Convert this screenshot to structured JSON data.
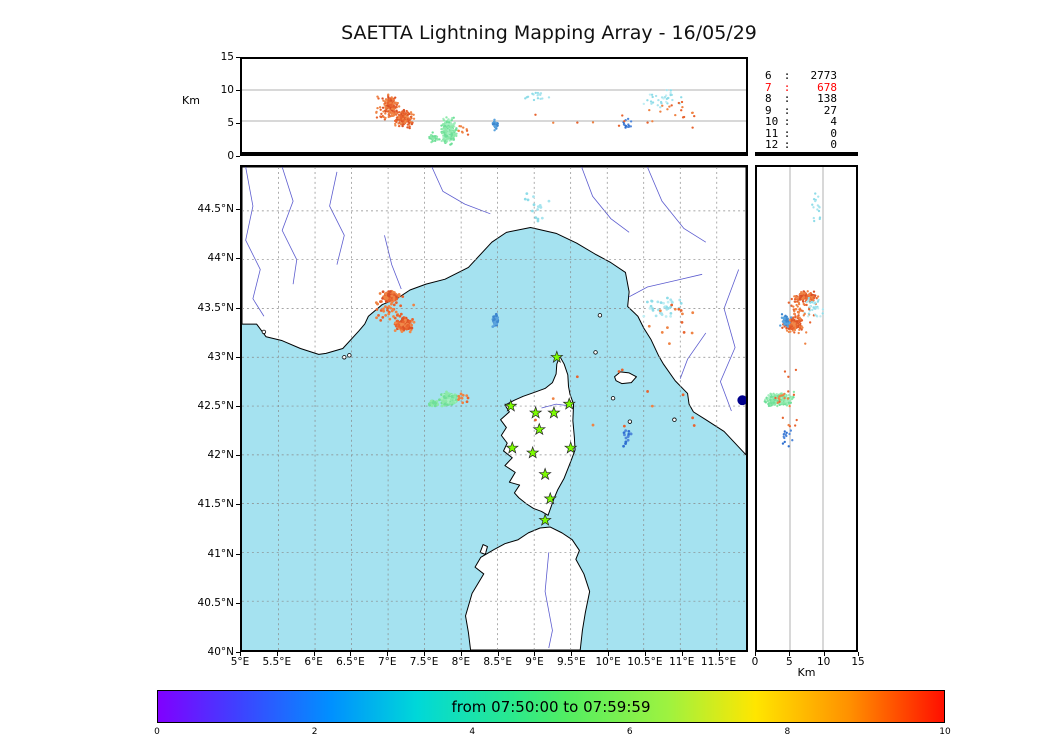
{
  "title": "SAETTA Lightning Mapping Array - 16/05/29",
  "axes": {
    "km_top_label": "Km",
    "km_right_label": "Km",
    "alt_ticks": [
      "0",
      "5",
      "10",
      "15"
    ],
    "lon_ticks": [
      "5°E",
      "5.5°E",
      "6°E",
      "6.5°E",
      "7°E",
      "7.5°E",
      "8°E",
      "8.5°E",
      "9°E",
      "9.5°E",
      "10°E",
      "10.5°E",
      "11°E",
      "11.5°E"
    ],
    "lat_ticks": [
      "40°N",
      "40.5°N",
      "41°N",
      "41.5°N",
      "42°N",
      "42.5°N",
      "43°N",
      "43.5°N",
      "44°N",
      "44.5°N"
    ]
  },
  "stats": {
    "rows": [
      {
        "level": "6",
        "count": "2773",
        "color": "#000000"
      },
      {
        "level": "7",
        "count": "678",
        "color": "#ff0000"
      },
      {
        "level": "8",
        "count": "138",
        "color": "#000000"
      },
      {
        "level": "9",
        "count": "27",
        "color": "#000000"
      },
      {
        "level": "10",
        "count": "4",
        "color": "#000000"
      },
      {
        "level": "11",
        "count": "0",
        "color": "#000000"
      },
      {
        "level": "12",
        "count": "0",
        "color": "#000000"
      }
    ]
  },
  "colorbar": {
    "label": "from 07:50:00 to 07:59:59",
    "ticks": [
      "0",
      "2",
      "4",
      "6",
      "8",
      "10"
    ],
    "gradient": [
      "#8000ff",
      "#4040ff",
      "#0090ff",
      "#00d8d8",
      "#2ae98e",
      "#52ee62",
      "#9ff23f",
      "#ffe600",
      "#ff9000",
      "#ff0f00"
    ]
  },
  "chart_data": {
    "type": "scatter",
    "title": "SAETTA Lightning Mapping Array - 16/05/29",
    "map": {
      "lon_range": [
        5.0,
        11.9
      ],
      "lat_range": [
        40.0,
        44.95
      ],
      "sea_color": "#a5e2f0",
      "land_color": "#ffffff",
      "river_color": "#5c5ccf",
      "grid": true
    },
    "alt_range": [
      0,
      15
    ],
    "alt_gridlines": [
      5,
      10
    ],
    "station_color": "#7cfc00",
    "clusters": [
      {
        "name": "orange-north",
        "colors": [
          "#e8632e",
          "#ef8344",
          "#d94f26"
        ],
        "lon": 7.03,
        "dlon": 0.14,
        "lat": 43.62,
        "dlat": 0.08,
        "alt": 7.5,
        "dalt": 2.2,
        "n": 130
      },
      {
        "name": "orange-south",
        "colors": [
          "#e8632e",
          "#f08a4b",
          "#dd5426"
        ],
        "lon": 7.22,
        "dlon": 0.16,
        "lat": 43.34,
        "dlat": 0.09,
        "alt": 5.3,
        "dalt": 1.9,
        "n": 150
      },
      {
        "name": "orange-sparse",
        "colors": [
          "#ef8344",
          "#e8632e"
        ],
        "lon": 7.05,
        "dlon": 0.45,
        "lat": 43.5,
        "dlat": 0.22,
        "alt": 6.5,
        "dalt": 3.0,
        "n": 45
      },
      {
        "name": "green-main",
        "colors": [
          "#8ce9a9",
          "#6fdf99",
          "#a5efc0"
        ],
        "lon": 7.83,
        "dlon": 0.13,
        "lat": 42.57,
        "dlat": 0.08,
        "alt": 3.4,
        "dalt": 2.6,
        "n": 310
      },
      {
        "name": "green-west-tail",
        "colors": [
          "#8ce9a9",
          "#6fdf99"
        ],
        "lon": 7.62,
        "dlon": 0.09,
        "lat": 42.53,
        "dlat": 0.05,
        "alt": 2.4,
        "dalt": 1.2,
        "n": 30
      },
      {
        "name": "blue-mid",
        "colors": [
          "#3d87cf",
          "#5aa3dd"
        ],
        "lon": 8.47,
        "dlon": 0.05,
        "lat": 43.37,
        "dlat": 0.08,
        "alt": 4.4,
        "dalt": 1.0,
        "n": 45
      },
      {
        "name": "cyan-east",
        "colors": [
          "#a7e4ee",
          "#c0eef4",
          "#8edce8"
        ],
        "lon": 10.75,
        "dlon": 0.38,
        "lat": 43.52,
        "dlat": 0.18,
        "alt": 8.6,
        "dalt": 2.0,
        "n": 35
      },
      {
        "name": "cyan-north",
        "colors": [
          "#a7e4ee",
          "#8edce8"
        ],
        "lon": 9.05,
        "dlon": 0.22,
        "lat": 44.55,
        "dlat": 0.25,
        "alt": 9.2,
        "dalt": 1.0,
        "n": 16
      },
      {
        "name": "blue-southeast",
        "colors": [
          "#2e6fd0",
          "#4f87da"
        ],
        "lon": 10.27,
        "dlon": 0.12,
        "lat": 42.2,
        "dlat": 0.14,
        "alt": 4.4,
        "dalt": 1.1,
        "n": 14
      },
      {
        "name": "orange-near-green",
        "colors": [
          "#ef8344",
          "#e8632e"
        ],
        "lon": 8.05,
        "dlon": 0.12,
        "lat": 42.58,
        "dlat": 0.08,
        "alt": 3.5,
        "dalt": 1.2,
        "n": 10
      },
      {
        "name": "orange-east-sparse",
        "colors": [
          "#ef8344",
          "#e8632e"
        ],
        "lon": 10.9,
        "dlon": 0.55,
        "lat": 43.35,
        "dlat": 0.3,
        "alt": 7.0,
        "dalt": 2.0,
        "n": 14
      },
      {
        "name": "orange-sea-scatter",
        "colors": [
          "#ef8344",
          "#e8632e"
        ],
        "lon": 10.0,
        "dlon": 1.5,
        "lat": 42.45,
        "dlat": 0.5,
        "alt": 5.0,
        "dalt": 2.5,
        "n": 12
      }
    ],
    "stations": [
      [
        9.31,
        43.0
      ],
      [
        8.68,
        42.5
      ],
      [
        9.02,
        42.43
      ],
      [
        9.27,
        42.43
      ],
      [
        9.48,
        42.52
      ],
      [
        9.07,
        42.26
      ],
      [
        8.7,
        42.07
      ],
      [
        8.98,
        42.02
      ],
      [
        9.5,
        42.07
      ],
      [
        9.15,
        41.8
      ],
      [
        9.22,
        41.55
      ],
      [
        9.15,
        41.33
      ]
    ],
    "edge_marker": {
      "lon": 11.85,
      "lat": 42.56,
      "color": "#00008b"
    }
  }
}
